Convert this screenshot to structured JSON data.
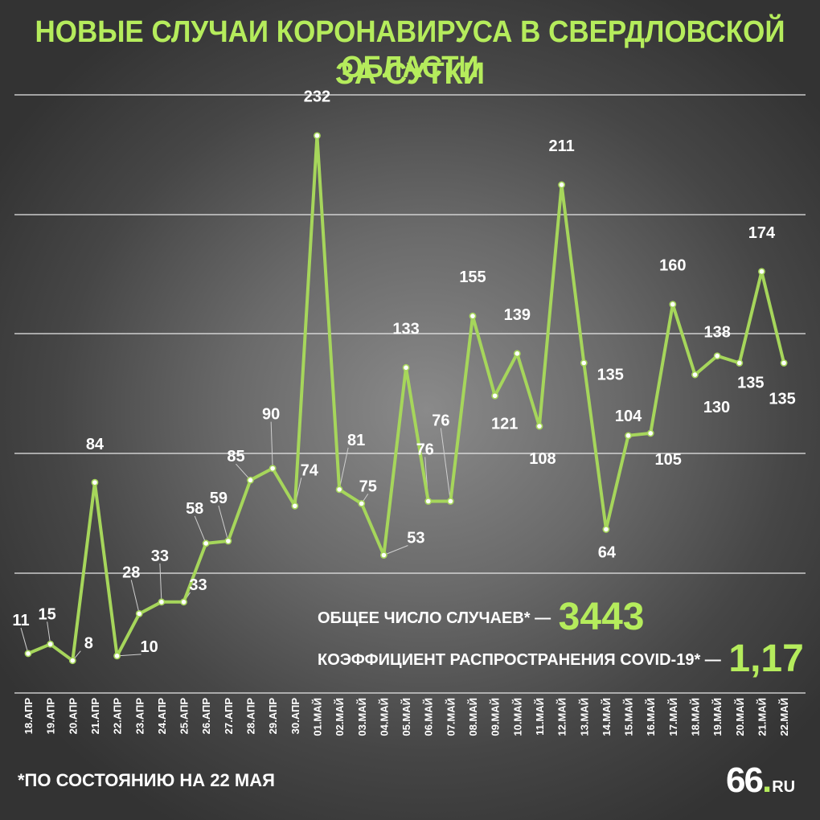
{
  "title_line1": "НОВЫЕ СЛУЧАИ КОРОНАВИРУСА В СВЕРДЛОВСКОЙ ОБЛАСТИ",
  "title_line2": "ЗА СУТКИ",
  "summary": {
    "total_label": "ОБЩЕЕ ЧИСЛО СЛУЧАЕВ* —",
    "total_value": "3443",
    "ratio_label": "КОЭФФИЦИЕНТ РАСПРОСТРАНЕНИЯ COVID-19* —",
    "ratio_value": "1,17"
  },
  "footnote": "*ПО СОСТОЯНИЮ НА 22 МАЯ",
  "logo": {
    "number": "66",
    "dot": ".",
    "domain": "RU"
  },
  "colors": {
    "accent": "#b5ec5c",
    "line": "#a6d65b",
    "background": "#5a5a5a",
    "text": "#ffffff",
    "grid": "#e8e8e8"
  },
  "chart_data": {
    "type": "line",
    "title": "НОВЫЕ СЛУЧАИ КОРОНАВИРУСА В СВЕРДЛОВСКОЙ ОБЛАСТИ ЗА СУТКИ",
    "xlabel": "",
    "ylabel": "",
    "ylim": [
      0,
      240
    ],
    "grid": true,
    "legend": "none",
    "categories": [
      "18.АПР",
      "19.АПР",
      "20.АПР",
      "21.АПР",
      "22.АПР",
      "23.АПР",
      "24.АПР",
      "25.АПР",
      "26.АПР",
      "27.АПР",
      "28.АПР",
      "29.АПР",
      "30.АПР",
      "01.МАЙ",
      "02.МАЙ",
      "03.МАЙ",
      "04.МАЙ",
      "05.МАЙ",
      "06.МАЙ",
      "07.МАЙ",
      "08.МАЙ",
      "09.МАЙ",
      "10.МАЙ",
      "11.МАЙ",
      "12.МАЙ",
      "13.МАЙ",
      "14.МАЙ",
      "15.МАЙ",
      "16.МАЙ",
      "17.МАЙ",
      "18.МАЙ",
      "19.МАЙ",
      "20.МАЙ",
      "21.МАЙ",
      "22.МАЙ"
    ],
    "values": [
      11,
      15,
      8,
      84,
      10,
      28,
      33,
      33,
      58,
      59,
      85,
      90,
      74,
      232,
      81,
      75,
      53,
      133,
      76,
      76,
      155,
      121,
      139,
      108,
      211,
      135,
      64,
      104,
      105,
      160,
      130,
      138,
      135,
      174,
      135
    ],
    "labels": [
      {
        "i": 1,
        "text": "11"
      },
      {
        "i": 2,
        "text": "15"
      },
      {
        "i": 3,
        "text": "8"
      },
      {
        "i": 4,
        "text": "84"
      },
      {
        "i": 5,
        "text": "10"
      },
      {
        "i": 6,
        "text": "28"
      },
      {
        "i": 7,
        "text": "33"
      },
      {
        "i": 8,
        "text": "33"
      },
      {
        "i": 9,
        "text": "58"
      },
      {
        "i": 10,
        "text": "59"
      },
      {
        "i": 11,
        "text": "85"
      },
      {
        "i": 12,
        "text": "90"
      },
      {
        "i": 13,
        "text": "74"
      },
      {
        "i": 14,
        "text": "232"
      },
      {
        "i": 15,
        "text": "81"
      },
      {
        "i": 16,
        "text": "75"
      },
      {
        "i": 17,
        "text": "53"
      },
      {
        "i": 18,
        "text": "133"
      },
      {
        "i": 19,
        "text": "76"
      },
      {
        "i": 20,
        "text": "76"
      },
      {
        "i": 21,
        "text": "155"
      },
      {
        "i": 22,
        "text": "121"
      },
      {
        "i": 23,
        "text": "139"
      },
      {
        "i": 24,
        "text": "108"
      },
      {
        "i": 25,
        "text": "211"
      },
      {
        "i": 26,
        "text": "135"
      },
      {
        "i": 27,
        "text": "64"
      },
      {
        "i": 28,
        "text": "104"
      },
      {
        "i": 29,
        "text": "105"
      },
      {
        "i": 30,
        "text": "160"
      },
      {
        "i": 31,
        "text": "130"
      },
      {
        "i": 32,
        "text": "138"
      },
      {
        "i": 33,
        "text": "135"
      },
      {
        "i": 34,
        "text": "174"
      },
      {
        "i": 35,
        "text": "135"
      }
    ]
  }
}
